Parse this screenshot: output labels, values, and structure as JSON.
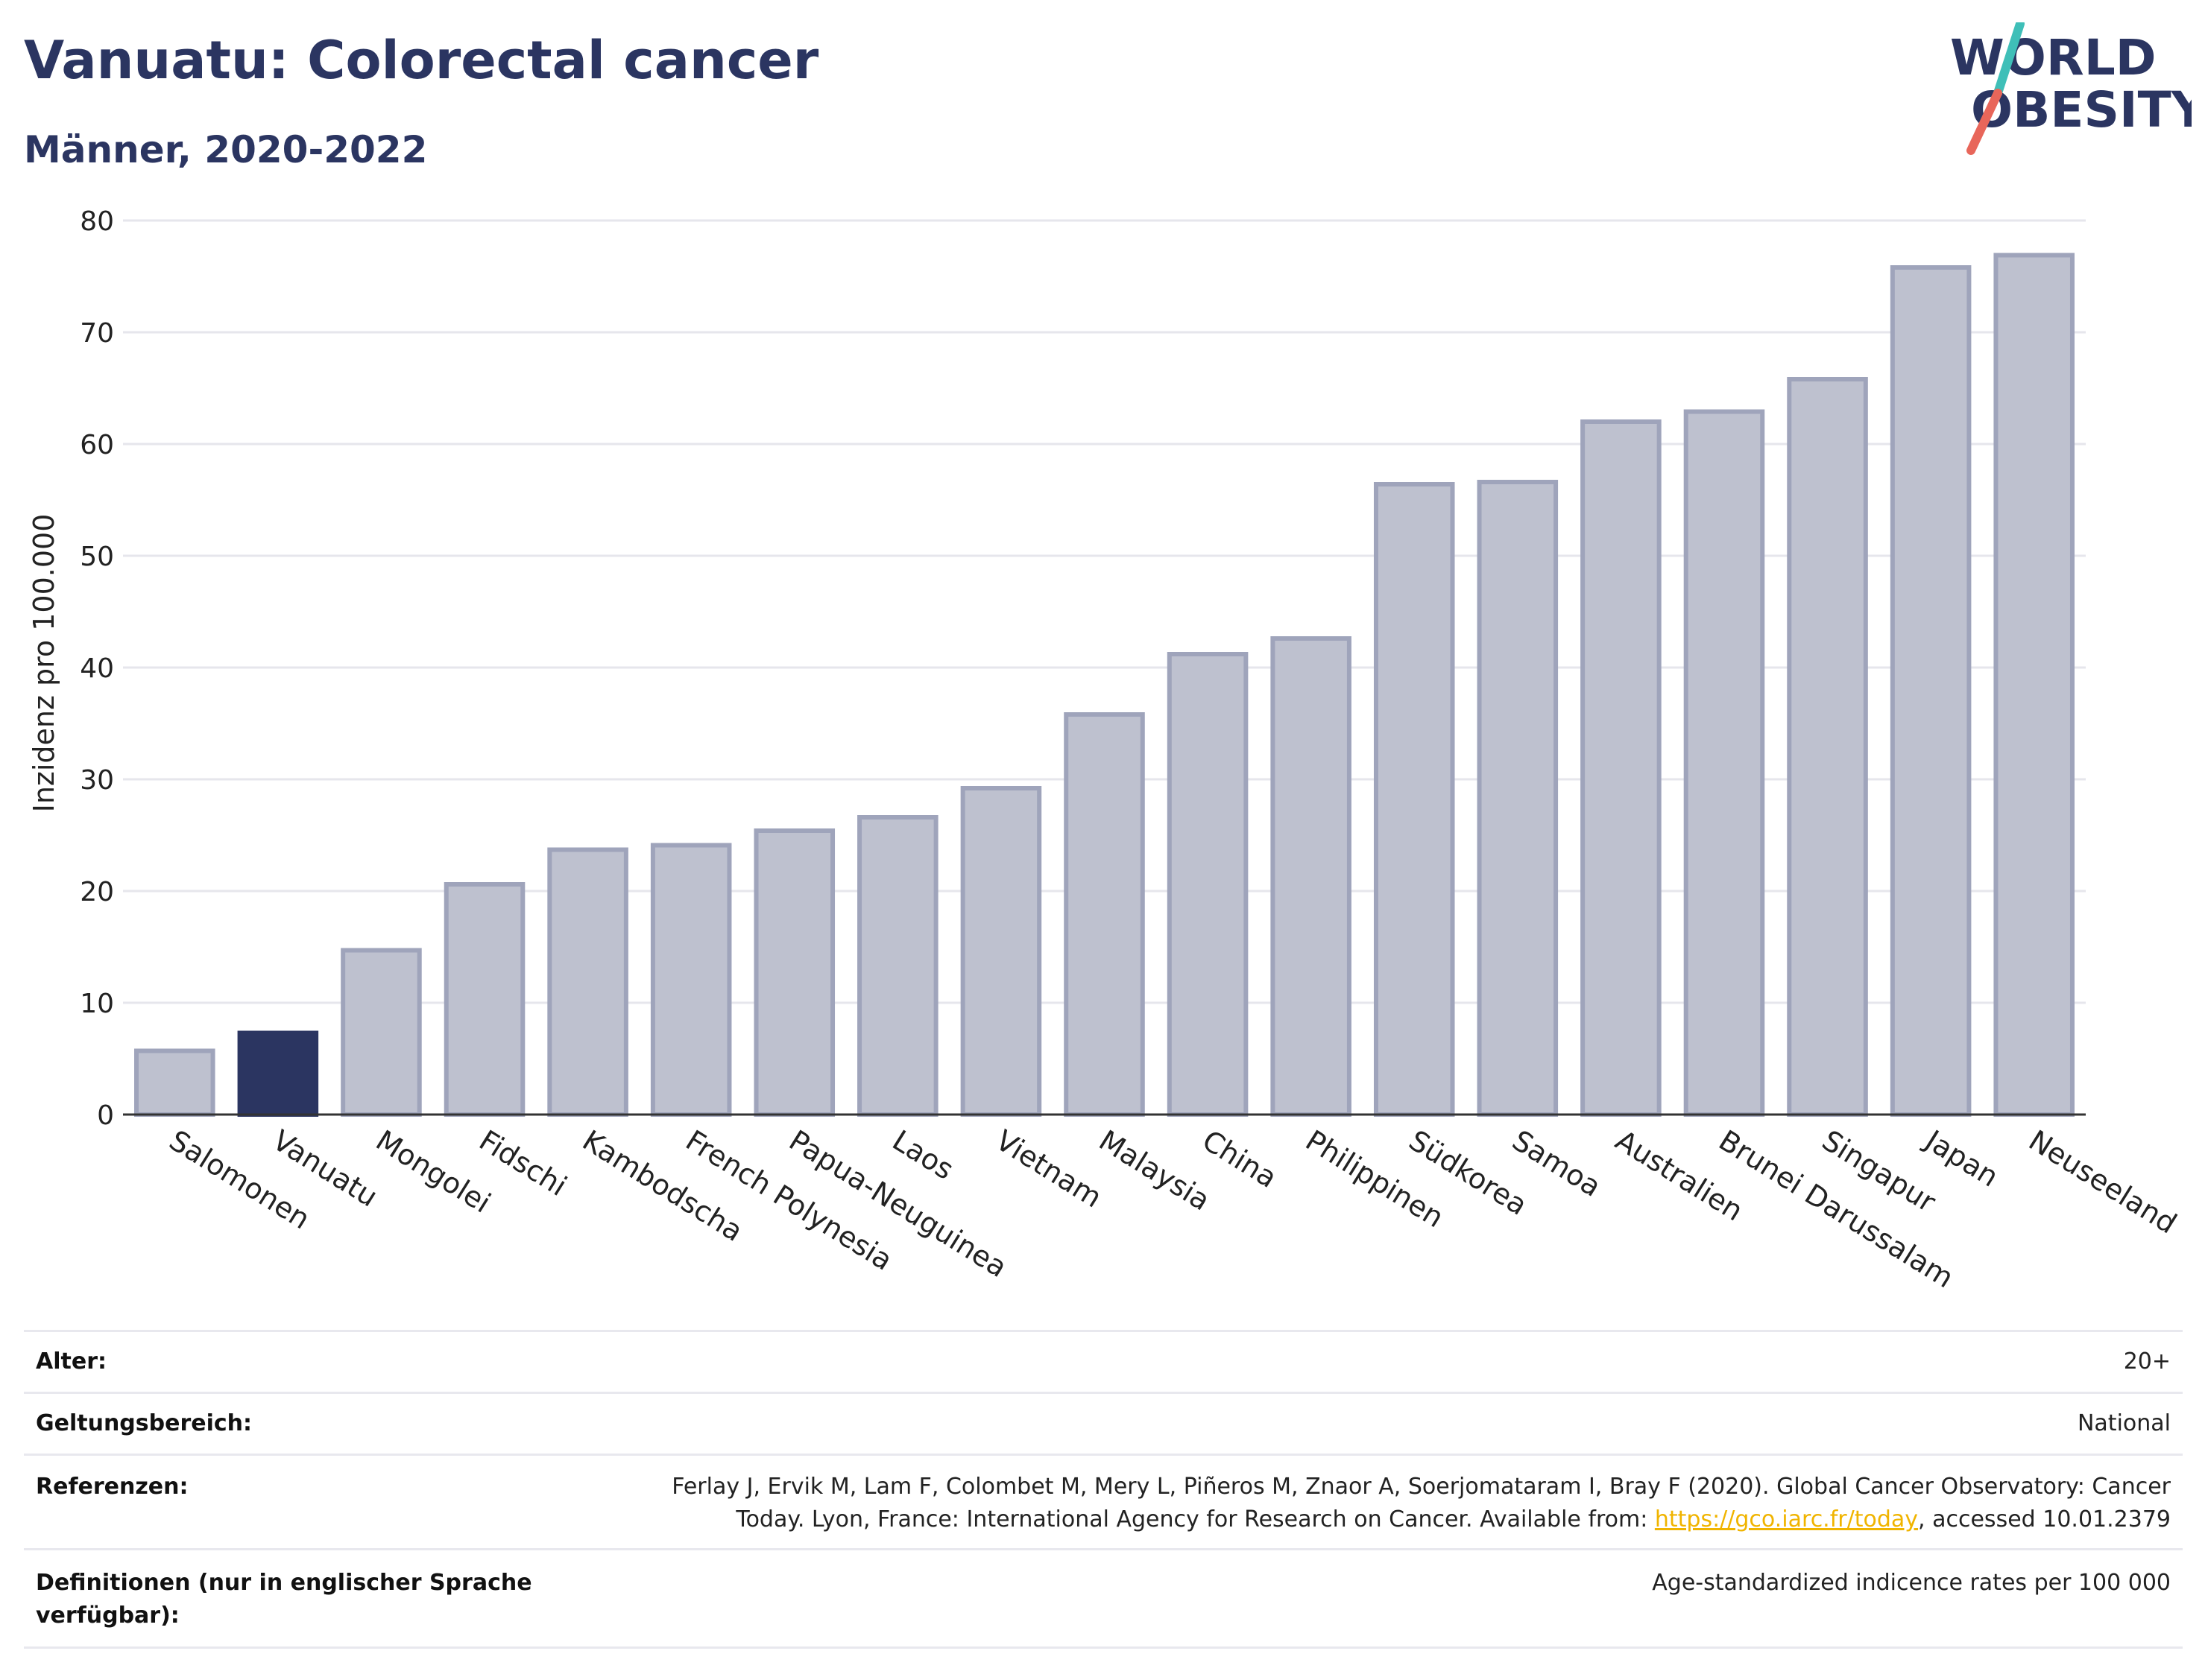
{
  "header": {
    "title": "Vanuatu: Colorectal cancer",
    "subtitle": "Männer, 2020-2022"
  },
  "logo": {
    "line1": "WORLD",
    "line2": "OBESITY",
    "colors": {
      "text": "#2b3561",
      "slash_top": "#3fbfb8",
      "slash_bottom": "#e8665a"
    }
  },
  "chart_data": {
    "type": "bar",
    "title": "Vanuatu: Colorectal cancer",
    "subtitle": "Männer, 2020-2022",
    "xlabel": "",
    "ylabel": "Inzidenz pro 100.000",
    "ylim": [
      0,
      80
    ],
    "yticks": [
      0,
      10,
      20,
      30,
      40,
      50,
      60,
      70,
      80
    ],
    "grid": true,
    "categories": [
      "Salomonen",
      "Vanuatu",
      "Mongolei",
      "Fidschi",
      "Kambodscha",
      "French Polynesia",
      "Papua-Neuguinea",
      "Laos",
      "Vietnam",
      "Malaysia",
      "China",
      "Philippinen",
      "Südkorea",
      "Samoa",
      "Australien",
      "Brunei Darussalam",
      "Singapur",
      "Japan",
      "Neuseeland"
    ],
    "values": [
      5.7,
      7.3,
      14.7,
      20.6,
      23.7,
      24.1,
      25.4,
      26.6,
      29.2,
      35.8,
      41.2,
      42.6,
      56.4,
      56.6,
      62.0,
      62.9,
      65.8,
      75.8,
      76.9
    ],
    "highlight": "Vanuatu",
    "colors": {
      "bar": "#bec1cf",
      "bar_border": "#9fa4bb",
      "highlight": "#2b3561",
      "grid": "#e6e6ec",
      "axis": "#333333"
    }
  },
  "footer": {
    "rows": [
      {
        "label": "Alter:",
        "value": "20+"
      },
      {
        "label": "Geltungsbereich:",
        "value": "National"
      },
      {
        "label": "Referenzen:",
        "value_line1": "Ferlay J, Ervik M, Lam F, Colombet M, Mery L, Piñeros M, Znaor A, Soerjomataram I, Bray F (2020). Global Cancer Observatory: Cancer",
        "value_line2_pre": "Today. Lyon, France: International Agency for Research on Cancer. Available from: ",
        "link": "https://gco.iarc.fr/today",
        "value_line2_post": ", accessed 10.01.2379"
      },
      {
        "label_line1": "Definitionen (nur in englischer Sprache",
        "label_line2": "verfügbar):",
        "value": "Age-standardized indicence rates per 100 000"
      }
    ]
  }
}
